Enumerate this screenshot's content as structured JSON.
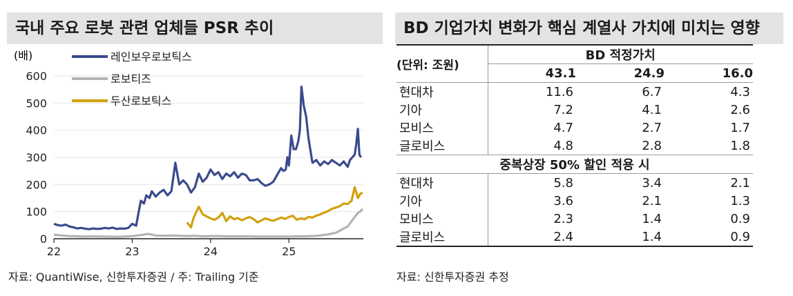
{
  "left": {
    "title": "국내 주요 로봇 관련 업체들 PSR 추이",
    "source": "자료: QuantiWise, 신한투자증권 / 주: Trailing 기준"
  },
  "right": {
    "title": "BD 기업가치 변화가 핵심 계열사 가치에 미치는 영향",
    "unit": "(단위: 조원)",
    "group_header": "BD 적정가치",
    "columns": [
      "43.1",
      "24.9",
      "16.0"
    ],
    "rows1": [
      {
        "name": "현대차",
        "values": [
          "11.6",
          "6.7",
          "4.3"
        ]
      },
      {
        "name": "기아",
        "values": [
          "7.2",
          "4.1",
          "2.6"
        ]
      },
      {
        "name": "모비스",
        "values": [
          "4.7",
          "2.7",
          "1.7"
        ]
      },
      {
        "name": "글로비스",
        "values": [
          "4.8",
          "2.8",
          "1.8"
        ]
      }
    ],
    "section2": "중복상장 50% 할인 적용 시",
    "rows2": [
      {
        "name": "현대차",
        "values": [
          "5.8",
          "3.4",
          "2.1"
        ]
      },
      {
        "name": "기아",
        "values": [
          "3.6",
          "2.1",
          "1.3"
        ]
      },
      {
        "name": "모비스",
        "values": [
          "2.3",
          "1.4",
          "0.9"
        ]
      },
      {
        "name": "글로비스",
        "values": [
          "2.4",
          "1.4",
          "0.9"
        ]
      }
    ],
    "source": "자료: 신한투자증권 추정"
  },
  "chart_data": {
    "type": "line",
    "ylabel": "(배)",
    "ylim": [
      0,
      600
    ],
    "y_ticks": [
      "0",
      "100",
      "200",
      "300",
      "400",
      "500",
      "600"
    ],
    "x_ticks": [
      "22",
      "23",
      "24",
      "25"
    ],
    "x_tick_values": [
      2022,
      2023,
      2024,
      2025
    ],
    "xlim": [
      2022,
      2025.95
    ],
    "legend_position": "top-left",
    "series": [
      {
        "name": "레인보우로보틱스",
        "color": "#3a4b8c",
        "x": [
          2022.0,
          2022.05,
          2022.1,
          2022.15,
          2022.2,
          2022.25,
          2022.3,
          2022.35,
          2022.4,
          2022.45,
          2022.5,
          2022.55,
          2022.6,
          2022.65,
          2022.7,
          2022.75,
          2022.8,
          2022.85,
          2022.9,
          2022.95,
          2023.0,
          2023.05,
          2023.08,
          2023.11,
          2023.15,
          2023.18,
          2023.22,
          2023.25,
          2023.3,
          2023.35,
          2023.4,
          2023.45,
          2023.5,
          2023.55,
          2023.6,
          2023.65,
          2023.7,
          2023.75,
          2023.8,
          2023.85,
          2023.9,
          2023.95,
          2024.0,
          2024.05,
          2024.1,
          2024.15,
          2024.2,
          2024.25,
          2024.3,
          2024.35,
          2024.4,
          2024.45,
          2024.5,
          2024.55,
          2024.6,
          2024.65,
          2024.7,
          2024.75,
          2024.8,
          2024.85,
          2024.9,
          2024.93,
          2024.96,
          2024.98,
          2025.0,
          2025.03,
          2025.06,
          2025.09,
          2025.12,
          2025.14,
          2025.16,
          2025.19,
          2025.22,
          2025.25,
          2025.3,
          2025.35,
          2025.4,
          2025.45,
          2025.5,
          2025.55,
          2025.6,
          2025.65,
          2025.7,
          2025.75,
          2025.78,
          2025.81,
          2025.84,
          2025.86,
          2025.88,
          2025.9,
          2025.92
        ],
        "values": [
          55,
          50,
          48,
          52,
          45,
          42,
          38,
          40,
          37,
          35,
          38,
          36,
          37,
          40,
          38,
          41,
          36,
          38,
          37,
          40,
          55,
          48,
          95,
          140,
          130,
          160,
          150,
          175,
          155,
          170,
          180,
          160,
          175,
          280,
          200,
          215,
          200,
          170,
          190,
          240,
          210,
          225,
          255,
          235,
          245,
          220,
          240,
          230,
          245,
          225,
          240,
          235,
          215,
          215,
          220,
          205,
          195,
          200,
          210,
          235,
          260,
          250,
          255,
          300,
          270,
          380,
          330,
          330,
          360,
          400,
          560,
          490,
          450,
          370,
          280,
          290,
          270,
          285,
          275,
          290,
          280,
          270,
          285,
          265,
          290,
          300,
          310,
          350,
          405,
          310,
          300
        ]
      },
      {
        "name": "로보티즈",
        "color": "#b3b3b3",
        "x": [
          2022.0,
          2022.1,
          2022.2,
          2022.3,
          2022.4,
          2022.5,
          2022.6,
          2022.7,
          2022.8,
          2022.9,
          2023.0,
          2023.1,
          2023.2,
          2023.3,
          2023.4,
          2023.5,
          2023.6,
          2023.7,
          2023.8,
          2023.9,
          2024.0,
          2024.1,
          2024.2,
          2024.3,
          2024.4,
          2024.5,
          2024.6,
          2024.7,
          2024.8,
          2024.9,
          2025.0,
          2025.1,
          2025.2,
          2025.3,
          2025.4,
          2025.5,
          2025.6,
          2025.65,
          2025.7,
          2025.75,
          2025.8,
          2025.84,
          2025.88,
          2025.91,
          2025.94
        ],
        "values": [
          15,
          12,
          10,
          9,
          8,
          9,
          8,
          8,
          7,
          8,
          10,
          13,
          18,
          12,
          11,
          12,
          11,
          10,
          11,
          9,
          10,
          10,
          9,
          9,
          9,
          9,
          8,
          8,
          8,
          8,
          8,
          9,
          9,
          10,
          12,
          16,
          22,
          30,
          38,
          45,
          65,
          80,
          95,
          100,
          110
        ]
      },
      {
        "name": "두산로보틱스",
        "color": "#d1a00c",
        "x": [
          2023.7,
          2023.75,
          2023.78,
          2023.82,
          2023.85,
          2023.9,
          2023.95,
          2024.0,
          2024.05,
          2024.1,
          2024.15,
          2024.2,
          2024.25,
          2024.3,
          2024.35,
          2024.4,
          2024.45,
          2024.5,
          2024.55,
          2024.6,
          2024.65,
          2024.7,
          2024.75,
          2024.8,
          2024.85,
          2024.9,
          2024.95,
          2025.0,
          2025.05,
          2025.1,
          2025.15,
          2025.2,
          2025.25,
          2025.3,
          2025.35,
          2025.4,
          2025.45,
          2025.5,
          2025.55,
          2025.6,
          2025.65,
          2025.7,
          2025.75,
          2025.8,
          2025.84,
          2025.88,
          2025.91,
          2025.94
        ],
        "values": [
          60,
          42,
          75,
          100,
          118,
          90,
          82,
          75,
          70,
          78,
          95,
          65,
          82,
          72,
          76,
          68,
          75,
          80,
          72,
          60,
          68,
          75,
          70,
          66,
          72,
          78,
          73,
          80,
          85,
          70,
          75,
          72,
          80,
          78,
          85,
          90,
          96,
          102,
          110,
          115,
          120,
          130,
          128,
          140,
          190,
          150,
          165,
          170
        ]
      }
    ]
  }
}
